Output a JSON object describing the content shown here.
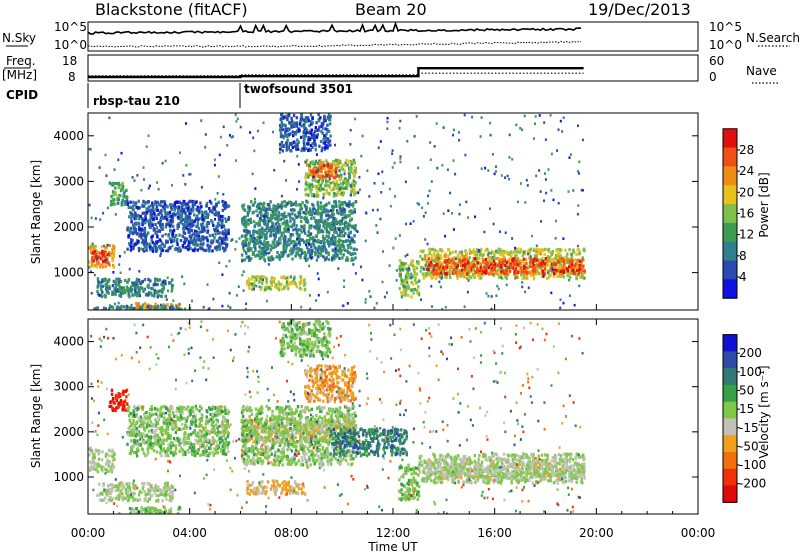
{
  "header": {
    "station": "Blackstone (fitACF)",
    "beam": "Beam 20",
    "date": "19/Dec/2013"
  },
  "chart_data": [
    {
      "type": "line",
      "panel": "noise",
      "left_label": "N.Sky",
      "right_label": "N.Search",
      "left_ticks": [
        "10^5",
        "10^0"
      ],
      "right_ticks": [
        "10^5",
        "10^0"
      ],
      "note": "noise traces, shape approximated"
    },
    {
      "type": "line",
      "panel": "frequency",
      "left_label_1": "Freq.",
      "left_label_2": "[MHz]",
      "left_ticks": [
        "18",
        "8"
      ],
      "right_ticks": [
        "60",
        "0"
      ],
      "right_label": "Nave",
      "series": [
        {
          "name": "Freq.",
          "x": [
            0,
            6.0,
            6.0,
            13.0,
            13.0,
            19.5
          ],
          "y": [
            10.5,
            10.5,
            11.0,
            11.0,
            16.0,
            16.0
          ]
        },
        {
          "name": "Nave",
          "x": [
            0,
            6.0,
            6.0,
            13.0,
            13.0,
            19.5
          ],
          "y": [
            12,
            12,
            14,
            14,
            18,
            18
          ]
        }
      ]
    },
    {
      "type": "text",
      "panel": "cpid",
      "label": "CPID",
      "segments": [
        {
          "text": "rbsp-tau 210",
          "start": 0.0
        },
        {
          "text": "twofsound 3501",
          "start": 6.0
        }
      ]
    },
    {
      "type": "heatmap",
      "panel": "power",
      "ylabel": "Slant Range [km]",
      "yticks": [
        1000,
        2000,
        3000,
        4000
      ],
      "ylim": [
        180,
        4500
      ],
      "colorbar_label": "Power [dB]",
      "colorbar_ticks": [
        4,
        8,
        12,
        16,
        20,
        24,
        28
      ],
      "colorbar_range": [
        0,
        32
      ],
      "colors": [
        "#1010e0",
        "#2a4cb0",
        "#2f7f8f",
        "#3c9c54",
        "#7fc04a",
        "#e8c020",
        "#f08c18",
        "#f05018",
        "#e01010"
      ],
      "data_end": 19.5,
      "patches": [
        {
          "t": [
            0.0,
            1.0
          ],
          "r": [
            1150,
            1650
          ],
          "level": 21
        },
        {
          "t": [
            0.1,
            0.8
          ],
          "r": [
            1200,
            1500
          ],
          "level": 27
        },
        {
          "t": [
            0.8,
            1.5
          ],
          "r": [
            2500,
            3000
          ],
          "level": 13
        },
        {
          "t": [
            0.3,
            3.3
          ],
          "r": [
            500,
            900
          ],
          "level": 10
        },
        {
          "t": [
            1.6,
            3.6
          ],
          "r": [
            180,
            360
          ],
          "level": 22
        },
        {
          "t": [
            0.2,
            4.0
          ],
          "r": [
            180,
            300
          ],
          "level": 10
        },
        {
          "t": [
            6.0,
            10.5
          ],
          "r": [
            1300,
            2600
          ],
          "level": 10
        },
        {
          "t": [
            8.5,
            10.5
          ],
          "r": [
            2700,
            3500
          ],
          "level": 16
        },
        {
          "t": [
            8.6,
            9.8
          ],
          "r": [
            3100,
            3450
          ],
          "level": 26
        },
        {
          "t": [
            7.5,
            9.5
          ],
          "r": [
            3700,
            4500
          ],
          "level": 6
        },
        {
          "t": [
            12.2,
            13.0
          ],
          "r": [
            500,
            1300
          ],
          "level": 16
        },
        {
          "t": [
            13.0,
            19.5
          ],
          "r": [
            900,
            1550
          ],
          "level": 18
        },
        {
          "t": [
            13.3,
            19.5
          ],
          "r": [
            1000,
            1350
          ],
          "level": 27
        },
        {
          "t": [
            6.2,
            8.5
          ],
          "r": [
            650,
            950
          ],
          "level": 17
        },
        {
          "t": [
            1.5,
            5.5
          ],
          "r": [
            1500,
            2600
          ],
          "level": 6
        }
      ]
    },
    {
      "type": "heatmap",
      "panel": "velocity",
      "ylabel": "Slant Range [km]",
      "yticks": [
        1000,
        2000,
        3000,
        4000
      ],
      "ylim": [
        180,
        4500
      ],
      "xlabel": "Time UT",
      "xticks": [
        "00:00",
        "04:00",
        "08:00",
        "12:00",
        "16:00",
        "20:00",
        "00:00"
      ],
      "xlim": [
        0,
        24
      ],
      "colorbar_label": "Velocity [m s⁻¹]",
      "colorbar_ticks": [
        "200",
        "100",
        "50",
        "15",
        "-15",
        "-50",
        "-100",
        "-200"
      ],
      "colorbar_range": [
        -250,
        250
      ],
      "colors": [
        "#1010d0",
        "#2c4ca8",
        "#2f7a72",
        "#36a046",
        "#80c848",
        "#c0c0b8",
        "#f0a020",
        "#f07010",
        "#f03008",
        "#e00808"
      ],
      "data_end": 19.5,
      "patches": [
        {
          "t": [
            0.0,
            1.0
          ],
          "r": [
            1150,
            1650
          ],
          "level": 0
        },
        {
          "t": [
            0.8,
            1.5
          ],
          "r": [
            2500,
            3000
          ],
          "level": -200
        },
        {
          "t": [
            0.3,
            3.3
          ],
          "r": [
            500,
            900
          ],
          "level": 0
        },
        {
          "t": [
            1.6,
            3.6
          ],
          "r": [
            180,
            360
          ],
          "level": 25
        },
        {
          "t": [
            6.2,
            8.5
          ],
          "r": [
            650,
            950
          ],
          "level": -60
        },
        {
          "t": [
            6.0,
            10.5
          ],
          "r": [
            1800,
            2300
          ],
          "level": -60
        },
        {
          "t": [
            6.0,
            10.5
          ],
          "r": [
            1300,
            2600
          ],
          "level": 20
        },
        {
          "t": [
            8.5,
            10.5
          ],
          "r": [
            2700,
            3500
          ],
          "level": -80
        },
        {
          "t": [
            7.5,
            9.5
          ],
          "r": [
            3700,
            4500
          ],
          "level": 30
        },
        {
          "t": [
            12.2,
            13.0
          ],
          "r": [
            500,
            1300
          ],
          "level": 30
        },
        {
          "t": [
            13.0,
            19.5
          ],
          "r": [
            900,
            1550
          ],
          "level": 0
        },
        {
          "t": [
            13.3,
            19.5
          ],
          "r": [
            1000,
            1350
          ],
          "level": -10
        },
        {
          "t": [
            1.5,
            5.5
          ],
          "r": [
            1500,
            2600
          ],
          "level": 30
        },
        {
          "t": [
            9.5,
            12.5
          ],
          "r": [
            1500,
            2100
          ],
          "level": 120
        }
      ]
    }
  ]
}
